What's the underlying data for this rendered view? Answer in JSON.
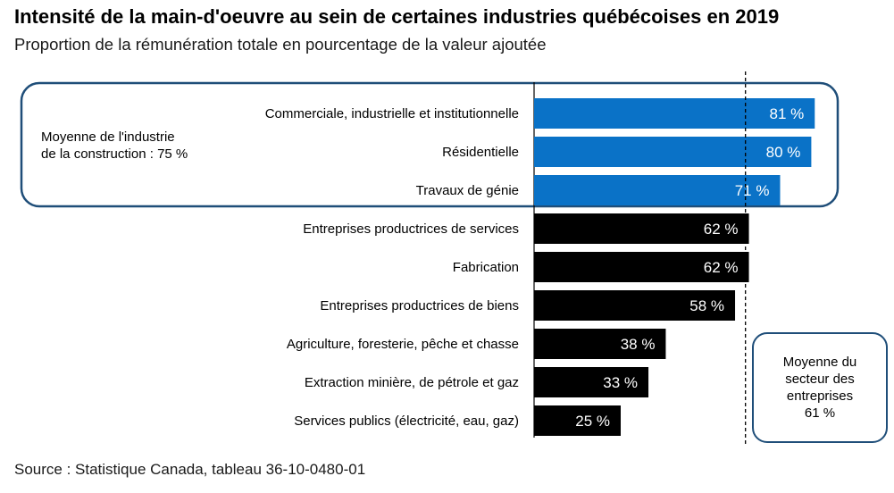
{
  "chart_data": {
    "type": "bar",
    "orientation": "horizontal",
    "title": "Intensité de la main-d'oeuvre au sein de certaines industries québécoises en 2019",
    "subtitle": "Proportion de la rémunération totale en pourcentage de la valeur ajoutée",
    "categories": [
      "Commerciale, industrielle et institutionnelle",
      "Résidentielle",
      "Travaux de génie",
      "Entreprises productrices de services",
      "Fabrication",
      "Entreprises productrices de biens",
      "Agriculture, foresterie, pêche et chasse",
      "Extraction minière, de pétrole et gaz",
      "Services publics (électricité, eau, gaz)"
    ],
    "values": [
      81,
      80,
      71,
      62,
      62,
      58,
      38,
      33,
      25
    ],
    "value_labels": [
      "81 %",
      "80 %",
      "71 %",
      "62 %",
      "62 %",
      "58 %",
      "38 %",
      "33 %",
      "25 %"
    ],
    "highlighted_count": 3,
    "colors": {
      "highlight": "#0a72c7",
      "default": "#000000",
      "box_border": "#1f4e79"
    },
    "reference_line": {
      "value": 61
    },
    "annotations": {
      "construction_avg": [
        "Moyenne de l'industrie",
        "de la construction : 75 %"
      ],
      "business_avg": [
        "Moyenne du",
        "secteur des",
        "entreprises",
        "61 %"
      ]
    },
    "xlim": [
      0,
      100
    ],
    "grid": false,
    "legend": "none"
  },
  "source": "Source : Statistique Canada, tableau 36-10-0480-01"
}
